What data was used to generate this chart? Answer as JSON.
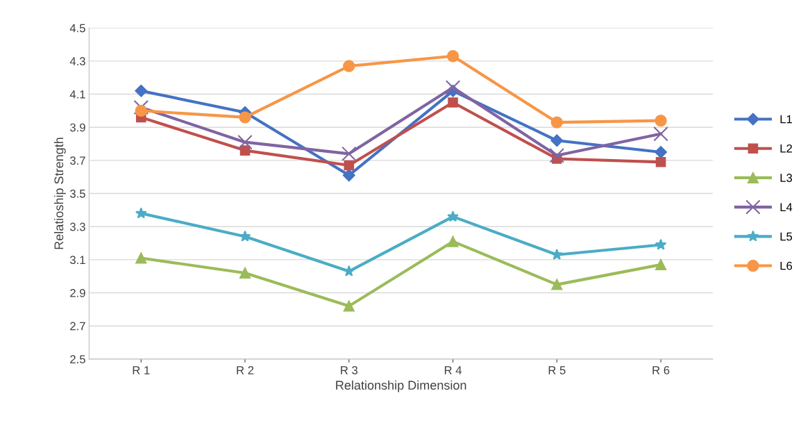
{
  "chart_data": {
    "type": "line",
    "xlabel": "Relationship Dimension",
    "ylabel": "Relatioship Strength",
    "categories": [
      "R 1",
      "R 2",
      "R 3",
      "R 4",
      "R 5",
      "R 6"
    ],
    "series": [
      {
        "name": "L1",
        "color": "#4472c4",
        "marker": "diamond",
        "values": [
          4.12,
          3.99,
          3.61,
          4.12,
          3.82,
          3.75
        ]
      },
      {
        "name": "L2",
        "color": "#c0504d",
        "marker": "square",
        "values": [
          3.96,
          3.76,
          3.67,
          4.05,
          3.71,
          3.69
        ]
      },
      {
        "name": "L3",
        "color": "#9bbb59",
        "marker": "triangle",
        "values": [
          3.11,
          3.02,
          2.82,
          3.21,
          2.95,
          3.07
        ]
      },
      {
        "name": "L4",
        "color": "#8064a2",
        "marker": "cross",
        "values": [
          4.02,
          3.81,
          3.74,
          4.14,
          3.73,
          3.86
        ]
      },
      {
        "name": "L5",
        "color": "#4bacc6",
        "marker": "star",
        "values": [
          3.38,
          3.24,
          3.03,
          3.36,
          3.13,
          3.19
        ]
      },
      {
        "name": "L6",
        "color": "#f79646",
        "marker": "circle",
        "values": [
          4.0,
          3.96,
          4.27,
          4.33,
          3.93,
          3.94
        ]
      }
    ],
    "ylim": [
      2.5,
      4.5
    ],
    "yticks": [
      2.5,
      2.7,
      2.9,
      3.1,
      3.3,
      3.5,
      3.7,
      3.9,
      4.1,
      4.3,
      4.5
    ],
    "grid": "y",
    "legend": "right",
    "line_style": "solid"
  }
}
